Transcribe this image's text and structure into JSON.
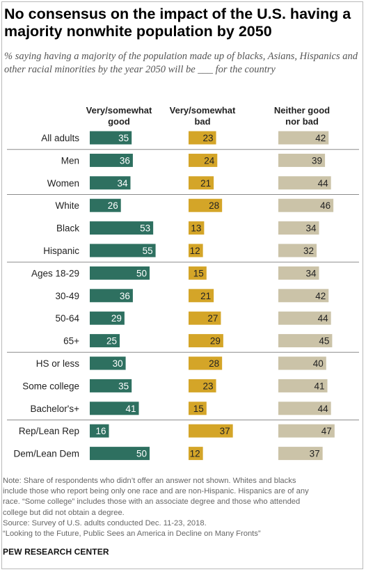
{
  "title": "No consensus on the impact of the U.S. having a majority nonwhite population by 2050",
  "subtitle": "% saying having a majority of the population made up of blacks, Asians, Hispanics and other racial minorities by the year 2050 will be ___ for the country",
  "colors": {
    "good": "#2e7060",
    "bad": "#d4a528",
    "neither": "#cbc3a8",
    "divider": "#8c8c8c"
  },
  "chart_data": {
    "type": "bar",
    "categories": [
      "All adults",
      "Men",
      "Women",
      "White",
      "Black",
      "Hispanic",
      "Ages 18-29",
      "30-49",
      "50-64",
      "65+",
      "HS or less",
      "Some college",
      "Bachelor's+",
      "Rep/Lean Rep",
      "Dem/Lean Dem"
    ],
    "series": [
      {
        "name": "Very/somewhat good",
        "values": [
          35,
          36,
          34,
          26,
          53,
          55,
          50,
          36,
          29,
          25,
          30,
          35,
          41,
          16,
          50
        ]
      },
      {
        "name": "Very/somewhat bad",
        "values": [
          23,
          24,
          21,
          28,
          13,
          12,
          15,
          21,
          27,
          29,
          28,
          23,
          15,
          37,
          12
        ]
      },
      {
        "name": "Neither good nor bad",
        "values": [
          42,
          39,
          44,
          46,
          34,
          32,
          34,
          42,
          44,
          45,
          40,
          41,
          44,
          47,
          37
        ]
      }
    ],
    "headers": [
      {
        "line1": "Very/somewhat",
        "line2": "good"
      },
      {
        "line1": "Very/somewhat",
        "line2": "bad"
      },
      {
        "line1": "Neither good",
        "line2": "nor bad"
      }
    ]
  },
  "notes": [
    "Note: Share of respondents who didn’t offer an answer not shown. Whites and blacks",
    "include those who report being only one race and are non-Hispanic. Hispanics are of any",
    "race. “Some college” includes those with an associate degree and those who attended",
    "college but did not obtain a degree.",
    "Source: Survey of U.S. adults conducted Dec. 11-23, 2018.",
    "“Looking to the Future, Public Sees an America in Decline on Many Fronts”"
  ],
  "brand": "PEW RESEARCH CENTER"
}
